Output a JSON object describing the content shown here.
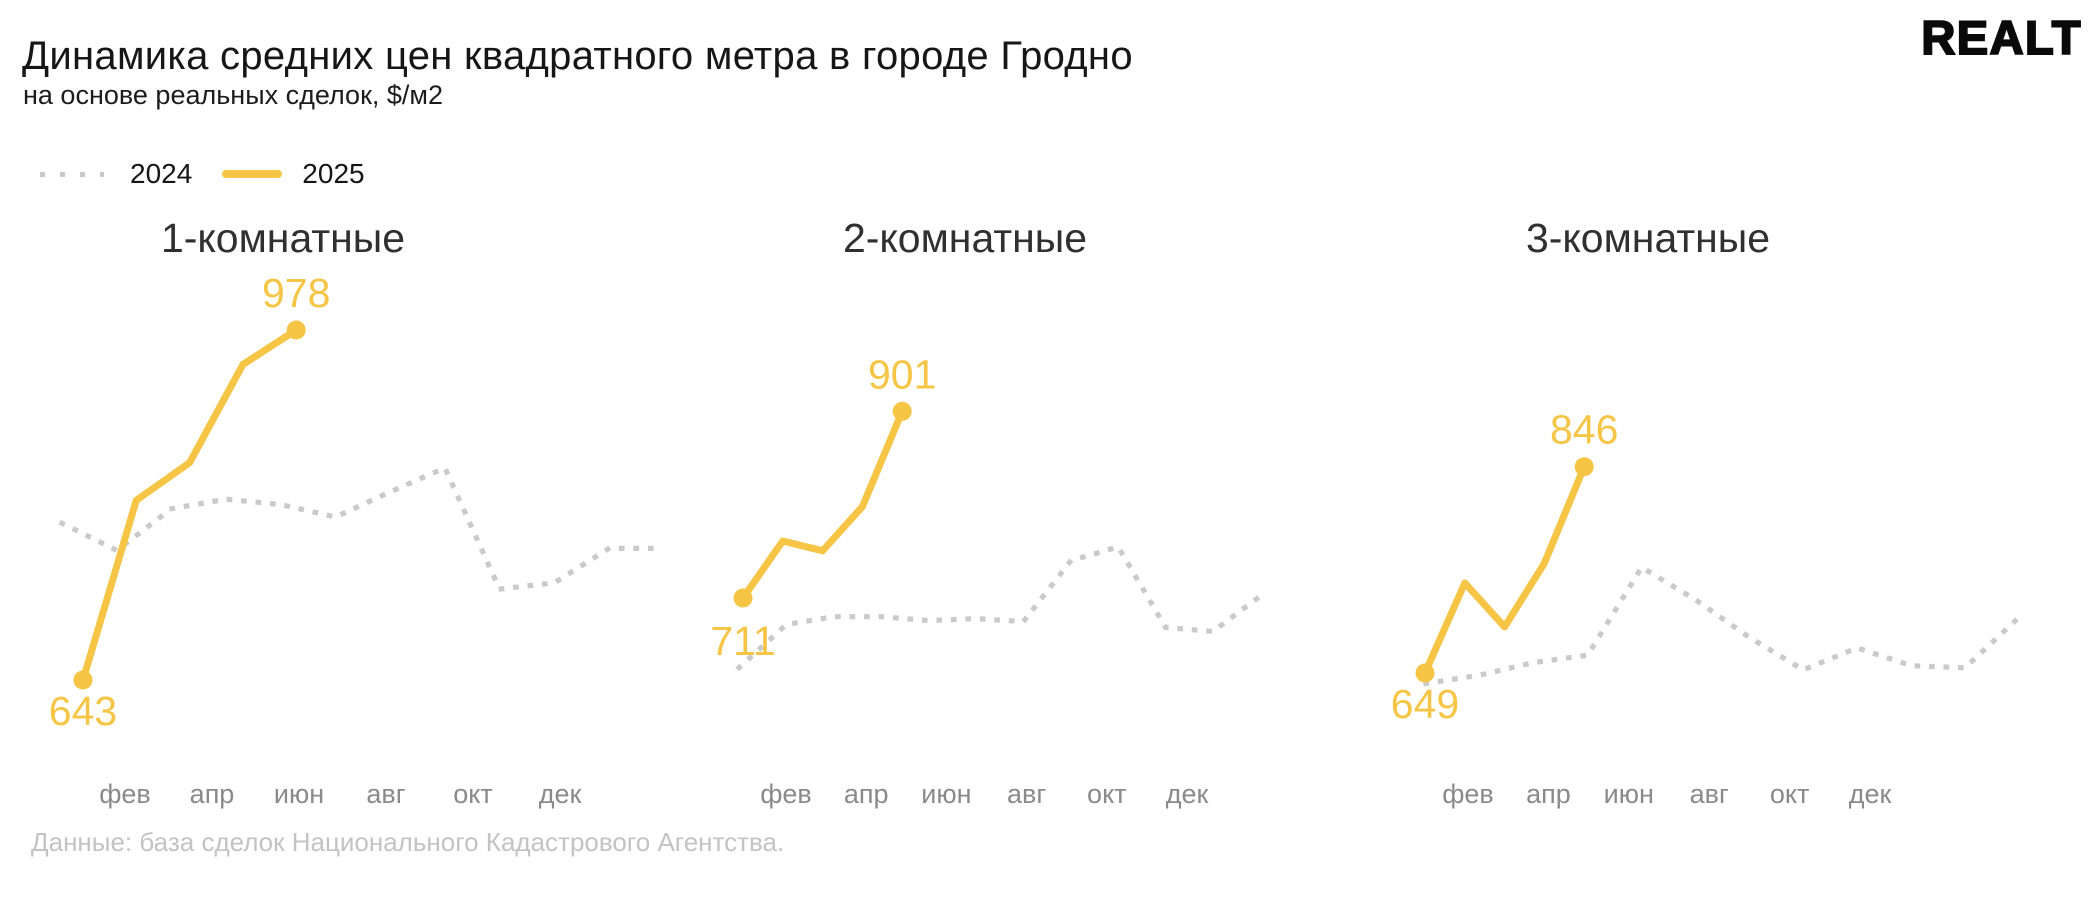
{
  "header": {
    "title": "Динамика средних цен квадратного метра в городе Гродно",
    "subtitle": "на основе реальных сделок, $/м2",
    "logo": "Realt"
  },
  "legend": [
    {
      "label": "2024",
      "style": "dotted"
    },
    {
      "label": "2025",
      "style": "solid"
    }
  ],
  "footer": {
    "source": "Данные: база сделок Национального Кадастрового Агентства."
  },
  "colors": {
    "accent_yellow": "#F6C545",
    "dotted_gray": "#CACACA",
    "axis_text": "#8A8A8A",
    "footer_text": "#C3C3C3"
  },
  "chart_data": [
    {
      "type": "line",
      "title": "1-комнатные",
      "x_tick_labels": [
        "фев",
        "апр",
        "июн",
        "авг",
        "окт",
        "дек"
      ],
      "series": [
        {
          "name": "2024",
          "style": "dotted",
          "months": [
            "янв",
            "фев",
            "мар",
            "апр",
            "май",
            "июн",
            "июл",
            "авг",
            "сен",
            "окт",
            "ноя",
            "дек"
          ],
          "values": [
            793,
            767,
            807,
            816,
            811,
            799,
            823,
            846,
            730,
            736,
            769,
            769
          ]
        },
        {
          "name": "2025",
          "style": "solid",
          "months": [
            "янв",
            "фев",
            "мар",
            "апр",
            "май"
          ],
          "values": [
            643,
            815,
            851,
            945,
            978
          ],
          "first_point_label": "643",
          "last_point_label": "978"
        }
      ]
    },
    {
      "type": "line",
      "title": "2-комнатные",
      "x_tick_labels": [
        "фев",
        "апр",
        "июн",
        "авг",
        "окт",
        "дек"
      ],
      "series": [
        {
          "name": "2024",
          "style": "dotted",
          "months": [
            "янв",
            "фев",
            "мар",
            "апр",
            "май",
            "июн",
            "июл",
            "авг",
            "сен",
            "окт",
            "ноя",
            "дек"
          ],
          "values": [
            640,
            684,
            692,
            692,
            688,
            690,
            687,
            749,
            763,
            681,
            677,
            713
          ]
        },
        {
          "name": "2025",
          "style": "solid",
          "months": [
            "янв",
            "фев",
            "мар",
            "апр",
            "май"
          ],
          "values": [
            711,
            769,
            759,
            804,
            901
          ],
          "first_point_label": "711",
          "last_point_label": "901"
        }
      ]
    },
    {
      "type": "line",
      "title": "3-комнатные",
      "x_tick_labels": [
        "фев",
        "апр",
        "июн",
        "авг",
        "окт",
        "дек"
      ],
      "series": [
        {
          "name": "2024",
          "style": "dotted",
          "months": [
            "янв",
            "фев",
            "мар",
            "апр",
            "май",
            "июн",
            "июл",
            "авг",
            "сен",
            "окт",
            "ноя",
            "дек"
          ],
          "values": [
            639,
            647,
            659,
            666,
            750,
            719,
            683,
            652,
            673,
            656,
            654,
            702
          ]
        },
        {
          "name": "2025",
          "style": "solid",
          "months": [
            "янв",
            "фев",
            "мар",
            "апр",
            "май"
          ],
          "values": [
            649,
            735,
            693,
            754,
            846
          ],
          "first_point_label": "649",
          "last_point_label": "846"
        }
      ]
    }
  ]
}
